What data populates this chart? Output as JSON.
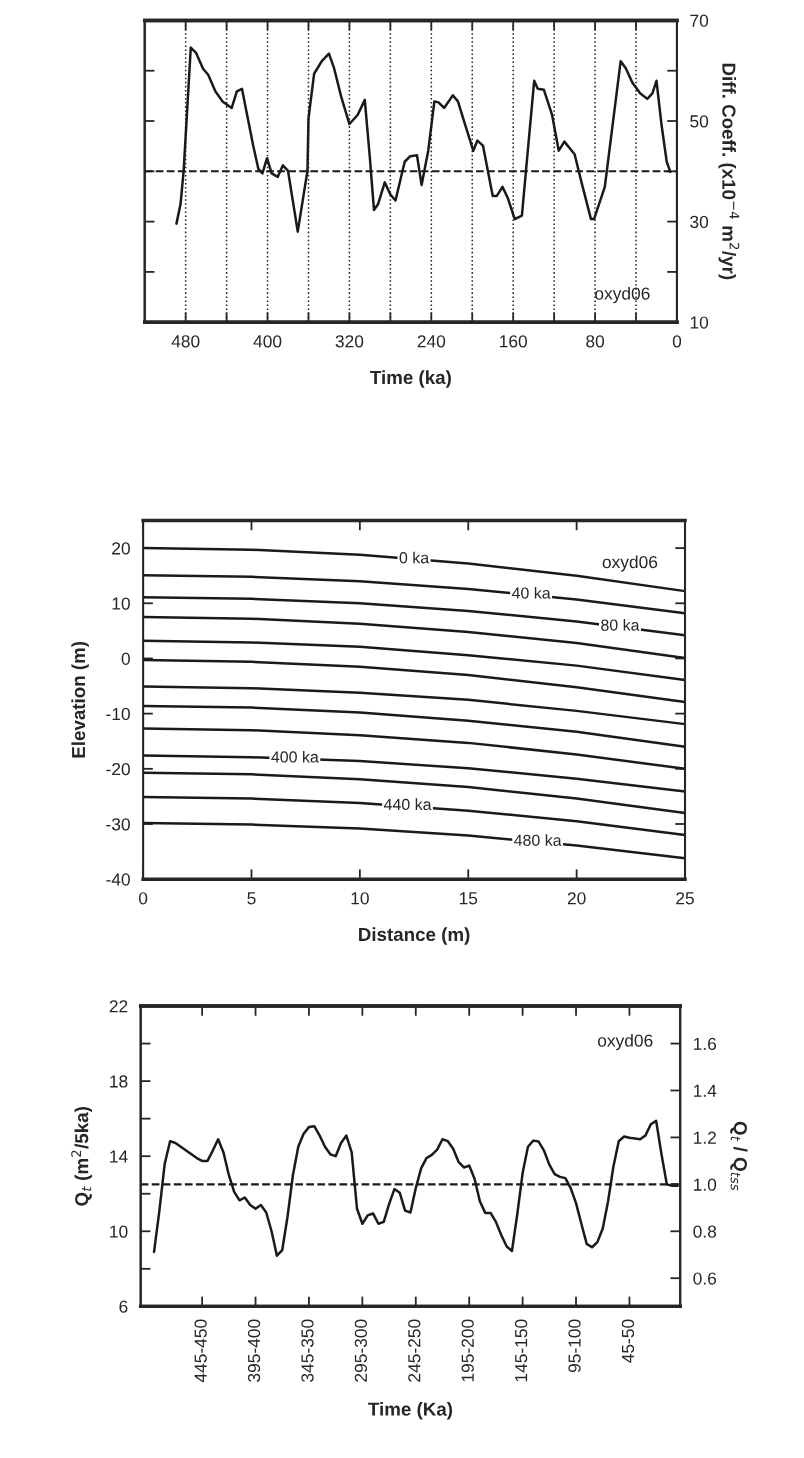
{
  "chart_data": [
    {
      "type": "line",
      "xlabel": "Time (ka)",
      "y2label": "Diff. Coeff. (x10$^{−4}$ m$^{2}$/yr)",
      "xlim": [
        520,
        0
      ],
      "xticks": [
        480,
        {
          "value": 440,
          "label": null
        },
        400,
        {
          "value": 360,
          "label": null
        },
        320,
        {
          "value": 280,
          "label": null
        },
        240,
        {
          "value": 200,
          "label": null
        },
        160,
        {
          "value": 120,
          "label": null
        },
        80,
        {
          "value": 40,
          "label": null
        },
        0
      ],
      "y2lim": [
        10,
        70
      ],
      "y2ticks": [
        10,
        {
          "value": 20,
          "label": null
        },
        30,
        {
          "value": 40,
          "label": null
        },
        50,
        {
          "value": 60,
          "label": null
        },
        70
      ],
      "grid": "x",
      "annotations": [
        "oxyd06"
      ],
      "ref_lines": [
        {
          "axis": "y2",
          "value": 40,
          "color": "#1a1a1a",
          "line_style": "dashed"
        }
      ],
      "series": [
        {
          "color": "#1a1a1a",
          "axis": "y2",
          "x": [
            489,
            485,
            482,
            475,
            470,
            463,
            458,
            451,
            444,
            435,
            430,
            425,
            414,
            409,
            405,
            400.5,
            396,
            390,
            385,
            380,
            370.5,
            361,
            360,
            354.5,
            347,
            340,
            335,
            328,
            320,
            312,
            305,
            300,
            296,
            292,
            285.5,
            280,
            275,
            266,
            260.5,
            254,
            249.5,
            243,
            237,
            233,
            227.5,
            219,
            214,
            205,
            199,
            195,
            189.5,
            180,
            176,
            170.5,
            165.5,
            158.5,
            151.5,
            139.5,
            136,
            130,
            122,
            115.5,
            110,
            100,
            93,
            84,
            81,
            70.5,
            55,
            50,
            43.5,
            36,
            29,
            24,
            20,
            15,
            10,
            6.5
          ],
          "values": [
            29.6,
            33.5,
            40,
            64.6,
            63.6,
            60.4,
            59.2,
            55.9,
            53.9,
            52.6,
            55.9,
            56.4,
            45.1,
            40.5,
            39.6,
            42.6,
            39.6,
            38.9,
            41.2,
            40.1,
            28,
            40.1,
            50.5,
            59.4,
            61.9,
            63.4,
            60.5,
            54.8,
            49.4,
            51.2,
            54.2,
            42.6,
            32.3,
            33.5,
            37.8,
            35.4,
            34.2,
            41.9,
            43,
            43.2,
            37.3,
            44.1,
            53.9,
            53.7,
            52.6,
            55.1,
            53.9,
            48,
            44.1,
            46.1,
            45.1,
            35.1,
            35.1,
            36.9,
            34.8,
            30.5,
            31.2,
            58,
            56.4,
            56.2,
            51.2,
            44.1,
            45.9,
            43.4,
            37.6,
            30.5,
            30.5,
            36.9,
            61.9,
            60.5,
            57.6,
            55.5,
            54.4,
            55.5,
            58,
            49.1,
            41.9,
            39.9
          ]
        }
      ]
    },
    {
      "type": "line",
      "xlabel": "Distance (m)",
      "ylabel": "Elevation (m)",
      "xlim": [
        0,
        25
      ],
      "xticks": [
        0,
        5,
        10,
        15,
        20,
        25
      ],
      "ylim": [
        -40,
        25
      ],
      "yticks": [
        -40,
        -30,
        -20,
        -10,
        0,
        10,
        20
      ],
      "annotations": [
        "oxyd06",
        {
          "text": "0 ka",
          "x": 12.5,
          "y": 18.0
        },
        {
          "text": "40 ka",
          "x": 17.9,
          "y": 11.6
        },
        {
          "text": "80 ka",
          "x": 22.0,
          "y": 5.8
        },
        {
          "text": "400 ka",
          "x": 7.0,
          "y": -18.1
        },
        {
          "text": "440 ka",
          "x": 12.2,
          "y": -26.7
        },
        {
          "text": "480 ka",
          "x": 18.2,
          "y": -33.2
        }
      ],
      "x": [
        0,
        5,
        10,
        15,
        20,
        25
      ],
      "series": [
        {
          "color": "#1a1a1a",
          "values": [
            20,
            19.7,
            18.8,
            17.2,
            15.0,
            12.2
          ]
        },
        {
          "color": "#1a1a1a",
          "values": [
            15.1,
            14.8,
            14.0,
            12.6,
            10.7,
            8.2
          ]
        },
        {
          "color": "#1a1a1a",
          "values": [
            11.1,
            10.8,
            10.0,
            8.6,
            6.7,
            4.2
          ]
        },
        {
          "color": "#1a1a1a",
          "values": [
            7.5,
            7.2,
            6.3,
            4.8,
            2.8,
            0.1
          ]
        },
        {
          "color": "#1a1a1a",
          "values": [
            3.2,
            2.9,
            2.1,
            0.6,
            -1.3,
            -3.9
          ]
        },
        {
          "color": "#1a1a1a",
          "values": [
            -0.3,
            -0.6,
            -1.5,
            -3.0,
            -5.2,
            -7.9
          ]
        },
        {
          "color": "#1a1a1a",
          "values": [
            -5.1,
            -5.4,
            -6.2,
            -7.5,
            -9.5,
            -11.9
          ]
        },
        {
          "color": "#1a1a1a",
          "values": [
            -8.6,
            -8.9,
            -9.8,
            -11.3,
            -13.3,
            -16.0
          ]
        },
        {
          "color": "#1a1a1a",
          "values": [
            -12.7,
            -13.0,
            -13.9,
            -15.3,
            -17.4,
            -20.0
          ]
        },
        {
          "color": "#1a1a1a",
          "values": [
            -17.6,
            -17.9,
            -18.6,
            -19.9,
            -21.8,
            -24.1
          ]
        },
        {
          "color": "#1a1a1a",
          "values": [
            -20.7,
            -21.0,
            -21.9,
            -23.3,
            -25.4,
            -28.0
          ]
        },
        {
          "color": "#1a1a1a",
          "values": [
            -25.1,
            -25.4,
            -26.2,
            -27.6,
            -29.5,
            -32.0
          ]
        },
        {
          "color": "#1a1a1a",
          "values": [
            -29.8,
            -30.1,
            -30.8,
            -32.1,
            -33.9,
            -36.2
          ]
        }
      ]
    },
    {
      "type": "line",
      "xlabel": "Time (Ka)",
      "ylabel": "Q$_{t}$ (m$^{2}$/5ka)",
      "y2label": "Q$_{t}$ / Q$_{tss}$",
      "categories": [
        null,
        null,
        null,
        null,
        null,
        null,
        null,
        null,
        null,
        null,
        null,
        "445-450",
        null,
        null,
        null,
        null,
        null,
        null,
        null,
        null,
        null,
        "395-400",
        null,
        null,
        null,
        null,
        null,
        null,
        null,
        null,
        null,
        "345-350",
        null,
        null,
        null,
        null,
        null,
        null,
        null,
        null,
        null,
        "295-300",
        null,
        null,
        null,
        null,
        null,
        null,
        null,
        null,
        null,
        "245-250",
        null,
        null,
        null,
        null,
        null,
        null,
        null,
        null,
        null,
        "195-200",
        null,
        null,
        null,
        null,
        null,
        null,
        null,
        null,
        null,
        "145-150",
        null,
        null,
        null,
        null,
        null,
        null,
        null,
        null,
        null,
        "95-100",
        null,
        null,
        null,
        null,
        null,
        null,
        null,
        null,
        null,
        "45-50",
        null,
        null,
        null,
        null,
        null,
        null,
        null,
        null,
        null
      ],
      "ylim": [
        6,
        22
      ],
      "yticks": [
        6,
        {
          "value": 8,
          "label": null
        },
        10,
        {
          "value": 12,
          "label": null
        },
        14,
        {
          "value": 16,
          "label": null
        },
        18,
        {
          "value": 20,
          "label": null
        },
        22
      ],
      "y2lim": [
        0.48,
        1.76
      ],
      "y2ticks": [
        0.6,
        0.8,
        {
          "value": 1,
          "label": "1.0"
        },
        1.2,
        1.4,
        1.6
      ],
      "annotations": [
        "oxyd06"
      ],
      "ref_lines": [
        {
          "axis": "y",
          "value": 12.5,
          "color": "#1a1a1a",
          "line_style": "dashed"
        }
      ],
      "series": [
        {
          "color": "#1a1a1a",
          "values": [
            null,
            null,
            8.9,
            11.1,
            13.6,
            14.8,
            14.7,
            14.5,
            14.3,
            14.1,
            13.9,
            13.75,
            13.75,
            14.3,
            14.9,
            14.2,
            13.0,
            12.1,
            11.65,
            11.8,
            11.4,
            11.2,
            11.4,
            11.0,
            10.0,
            8.7,
            9.0,
            10.8,
            13.0,
            14.5,
            15.2,
            15.55,
            15.6,
            15.1,
            14.5,
            14.1,
            14.0,
            14.7,
            15.1,
            14.2,
            11.2,
            10.4,
            10.85,
            10.95,
            10.4,
            10.5,
            11.45,
            12.25,
            12.05,
            11.1,
            11.0,
            12.3,
            13.35,
            13.9,
            14.07,
            14.35,
            14.9,
            14.8,
            14.4,
            13.7,
            13.4,
            13.5,
            12.8,
            11.6,
            10.98,
            10.98,
            10.5,
            9.8,
            9.2,
            8.95,
            10.9,
            13.1,
            14.5,
            14.83,
            14.78,
            14.3,
            13.55,
            13.05,
            12.9,
            12.83,
            12.3,
            11.5,
            10.4,
            9.33,
            9.15,
            9.42,
            10.15,
            11.6,
            13.45,
            14.8,
            15.05,
            14.98,
            14.94,
            14.9,
            15.1,
            15.7,
            15.88,
            14.1,
            12.5,
            12.42,
            12.42
          ]
        }
      ]
    }
  ]
}
